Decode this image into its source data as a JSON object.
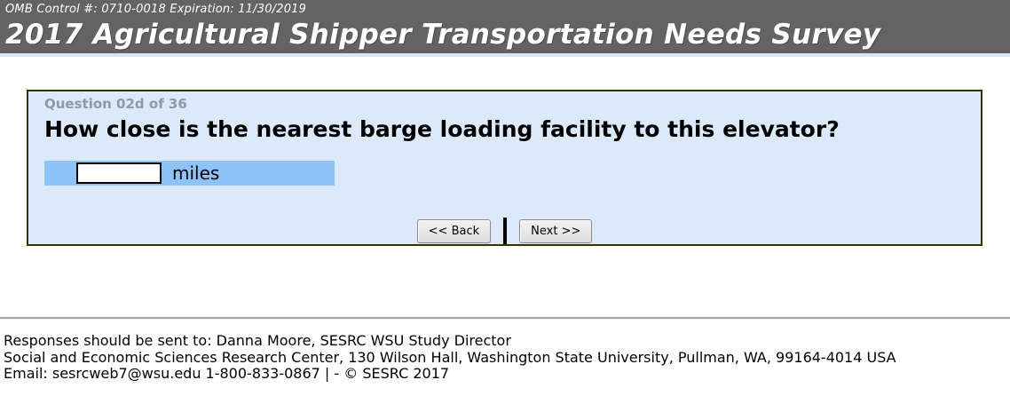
{
  "header": {
    "omb_line": "OMB Control #: 0710-0018 Expiration: 11/30/2019",
    "title": "2017 Agricultural Shipper Transportation Needs Survey"
  },
  "question": {
    "progress_label": "Question 02d of 36",
    "text": "How close is the nearest barge loading facility to this elevator?",
    "answer": {
      "input_value": "",
      "unit_label": "miles"
    }
  },
  "nav": {
    "back_label": "<< Back",
    "next_label": "Next >>"
  },
  "footer": {
    "line1": "Responses should be sent to: Danna Moore, SESRC WSU Study Director",
    "line2": "Social and Economic Sciences Research Center, 130 Wilson Hall, Washington State University, Pullman, WA, 99164-4014 USA",
    "line3": "Email: sesrcweb7@wsu.edu 1-800-833-0867 | - © SESRC 2017"
  },
  "colors": {
    "header_bg": "#636363",
    "header_underline": "#d9e5f5",
    "panel_bg": "#dce9fb",
    "panel_border": "#333300",
    "answer_row_bg": "#8dc3f9",
    "progress_text": "#8e99a5"
  }
}
